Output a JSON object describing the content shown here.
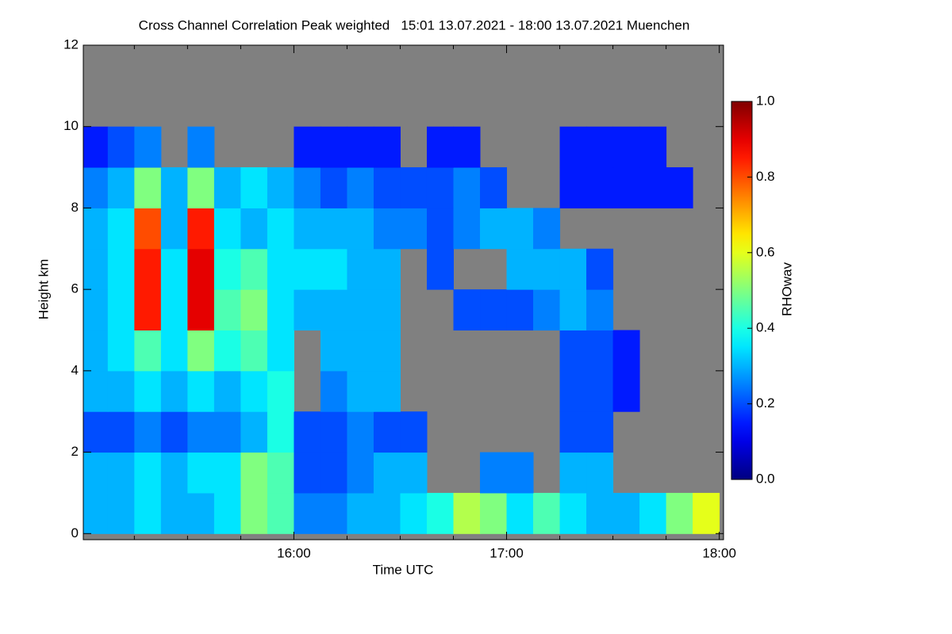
{
  "chart_data": {
    "type": "heatmap",
    "title": "Cross Channel Correlation Peak weighted   15:01 13.07.2021 - 18:00 13.07.2021 Muenchen",
    "xlabel": "Time UTC",
    "ylabel": "Height km",
    "colorbar_label": "RHOwav",
    "colormap": "jet",
    "missing_color": "#808080",
    "xlim": [
      15.01,
      18.02
    ],
    "ylim": [
      -0.15,
      12
    ],
    "clim": [
      0,
      1
    ],
    "xticks": [
      {
        "value": 16,
        "label": "16:00"
      },
      {
        "value": 17,
        "label": "17:00"
      },
      {
        "value": 18,
        "label": "18:00"
      }
    ],
    "xminor_ticks": [
      15.25,
      15.5,
      15.75,
      16.25,
      16.5,
      16.75,
      17.25,
      17.5,
      17.75
    ],
    "yticks": [
      0,
      2,
      4,
      6,
      8,
      10,
      12
    ],
    "cticks": [
      {
        "value": 0,
        "label": "0.0"
      },
      {
        "value": 0.2,
        "label": "0.2"
      },
      {
        "value": 0.4,
        "label": "0.4"
      },
      {
        "value": 0.6,
        "label": "0.6"
      },
      {
        "value": 0.8,
        "label": "0.8"
      },
      {
        "value": 1,
        "label": "1.0"
      }
    ],
    "x_edges": [
      15.0,
      15.125,
      15.25,
      15.375,
      15.5,
      15.625,
      15.75,
      15.875,
      16.0,
      16.125,
      16.25,
      16.375,
      16.5,
      16.625,
      16.75,
      16.875,
      17.0,
      17.125,
      17.25,
      17.375,
      17.5,
      17.625,
      17.75,
      17.875,
      18.0
    ],
    "y_edges": [
      0,
      1,
      2,
      3,
      4,
      5,
      6,
      7,
      8,
      9,
      10,
      11,
      12
    ],
    "z": [
      [
        0.3,
        0.3,
        0.35,
        0.3,
        0.3,
        0.35,
        0.5,
        0.45,
        0.25,
        0.25,
        0.3,
        0.3,
        0.35,
        0.4,
        0.55,
        0.5,
        0.35,
        0.45,
        0.35,
        0.3,
        0.3,
        0.35,
        0.5,
        0.6
      ],
      [
        0.3,
        0.3,
        0.35,
        0.3,
        0.35,
        0.35,
        0.5,
        0.45,
        0.2,
        0.2,
        0.25,
        0.3,
        0.3,
        null,
        null,
        0.25,
        0.25,
        null,
        0.3,
        0.3,
        null,
        null,
        null,
        null
      ],
      [
        0.2,
        0.2,
        0.25,
        0.2,
        0.25,
        0.25,
        0.3,
        0.4,
        0.2,
        0.2,
        0.25,
        0.2,
        0.2,
        null,
        null,
        null,
        null,
        null,
        0.2,
        0.2,
        null,
        null,
        null,
        null
      ],
      [
        0.3,
        0.3,
        0.35,
        0.3,
        0.35,
        0.3,
        0.35,
        0.4,
        null,
        0.25,
        0.3,
        0.3,
        null,
        null,
        null,
        null,
        null,
        null,
        0.2,
        0.2,
        0.15,
        null,
        null,
        null
      ],
      [
        0.3,
        0.35,
        0.45,
        0.35,
        0.5,
        0.4,
        0.45,
        0.35,
        null,
        0.3,
        0.3,
        0.3,
        null,
        null,
        null,
        null,
        null,
        null,
        0.2,
        0.2,
        0.15,
        null,
        null,
        null
      ],
      [
        0.3,
        0.35,
        0.85,
        0.35,
        0.9,
        0.45,
        0.5,
        0.35,
        0.3,
        0.3,
        0.3,
        0.3,
        null,
        null,
        0.2,
        0.2,
        0.2,
        0.25,
        0.3,
        0.25,
        null,
        null,
        null,
        null
      ],
      [
        0.3,
        0.35,
        0.85,
        0.35,
        0.9,
        0.4,
        0.45,
        0.35,
        0.35,
        0.35,
        0.3,
        0.3,
        null,
        0.2,
        null,
        null,
        0.3,
        0.3,
        0.3,
        0.2,
        null,
        null,
        null,
        null
      ],
      [
        0.3,
        0.35,
        0.8,
        0.3,
        0.85,
        0.35,
        0.3,
        0.35,
        0.3,
        0.3,
        0.3,
        0.25,
        0.25,
        0.2,
        0.25,
        0.3,
        0.3,
        0.25,
        null,
        null,
        null,
        null,
        null,
        null
      ],
      [
        0.25,
        0.3,
        0.5,
        0.3,
        0.5,
        0.3,
        0.35,
        0.3,
        0.25,
        0.2,
        0.25,
        0.2,
        0.2,
        0.2,
        0.25,
        0.2,
        null,
        null,
        0.15,
        0.15,
        0.15,
        0.15,
        0.15,
        null
      ],
      [
        0.15,
        0.2,
        0.25,
        null,
        0.25,
        null,
        null,
        null,
        0.15,
        0.15,
        0.15,
        0.15,
        null,
        0.15,
        0.15,
        null,
        null,
        null,
        0.15,
        0.15,
        0.15,
        0.15,
        null,
        null
      ],
      [
        null,
        null,
        null,
        null,
        null,
        null,
        null,
        null,
        null,
        null,
        null,
        null,
        null,
        null,
        null,
        null,
        null,
        null,
        null,
        null,
        null,
        null,
        null,
        null
      ],
      [
        null,
        null,
        null,
        null,
        null,
        null,
        null,
        null,
        null,
        null,
        null,
        null,
        null,
        null,
        null,
        null,
        null,
        null,
        null,
        null,
        null,
        null,
        null,
        null
      ]
    ]
  }
}
